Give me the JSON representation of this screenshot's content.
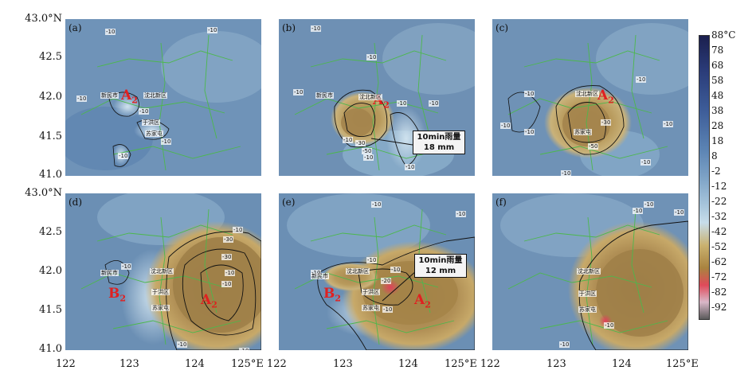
{
  "panels": [
    {
      "label": "(a)"
    },
    {
      "label": "(b)"
    },
    {
      "label": "(c)"
    },
    {
      "label": "(d)"
    },
    {
      "label": "(e)"
    },
    {
      "label": "(f)"
    }
  ],
  "lat_ticks_top": [
    "43.0°N",
    "42.5",
    "42.0",
    "41.5",
    "41.0"
  ],
  "lat_ticks_bottom": [
    "43.0°N",
    "42.5",
    "42.0",
    "41.5",
    "41.0"
  ],
  "lon_ticks": [
    "122",
    "123",
    "124",
    "125°E 122",
    "123",
    "124",
    "125°E 122",
    "123",
    "124",
    "125°E"
  ],
  "colorbar": {
    "ticks": [
      "88°C",
      "78",
      "68",
      "58",
      "48",
      "38",
      "28",
      "18",
      "8",
      "-2",
      "-12",
      "-22",
      "-32",
      "-42",
      "-52",
      "-62",
      "-72",
      "-82",
      "-92"
    ]
  },
  "annotations": {
    "b": {
      "line1": "10min雨量",
      "line2": "18 mm"
    },
    "e": {
      "line1": "10min雨量",
      "line2": "12 mm"
    }
  },
  "systems": {
    "a_A": {
      "main": "A",
      "sub": "2"
    },
    "b_A": {
      "main": "A",
      "sub": "2"
    },
    "c_A": {
      "main": "A",
      "sub": "2"
    },
    "d_A": {
      "main": "A",
      "sub": "2"
    },
    "d_B": {
      "main": "B",
      "sub": "2"
    },
    "e_A": {
      "main": "A",
      "sub": "2"
    },
    "e_B": {
      "main": "B",
      "sub": "2"
    }
  },
  "contour_label": "-10",
  "contour_labels_extra": {
    "d1": "-30",
    "d2": "-30",
    "e1": "-20",
    "c1": "-30",
    "c2": "-50",
    "b1": "-30",
    "b2": "-50"
  },
  "town_labels": [
    "新民市",
    "沈北新区",
    "于洪区",
    "苏家屯"
  ]
}
